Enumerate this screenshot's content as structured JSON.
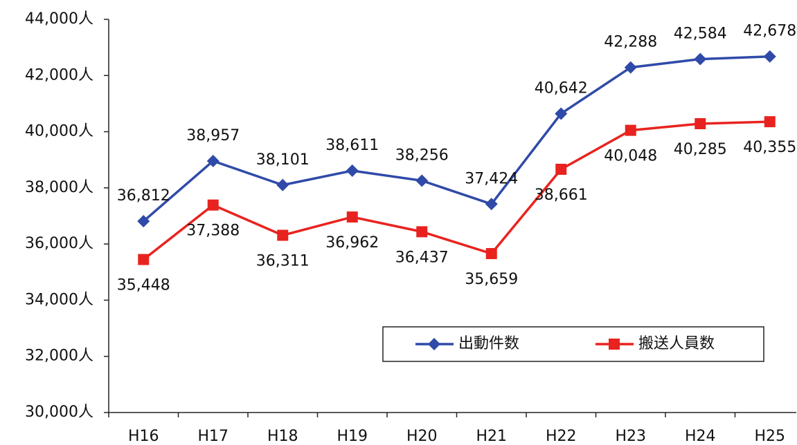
{
  "chart_data": {
    "type": "line",
    "categories": [
      "H16",
      "H17",
      "H18",
      "H19",
      "H20",
      "H21",
      "H22",
      "H23",
      "H24",
      "H25"
    ],
    "series": [
      {
        "name": "出動件数",
        "color": "#2f4aa8",
        "marker": "diamond",
        "values": [
          36812,
          38957,
          38101,
          38611,
          38256,
          37424,
          40642,
          42288,
          42584,
          42678
        ],
        "value_labels": [
          "36,812",
          "38,957",
          "38,101",
          "38,611",
          "38,256",
          "37,424",
          "40,642",
          "42,288",
          "42,584",
          "42,678"
        ]
      },
      {
        "name": "搬送人員数",
        "color": "#e8231f",
        "marker": "square",
        "values": [
          35448,
          37388,
          36311,
          36962,
          36437,
          35659,
          38661,
          40048,
          40285,
          40355
        ],
        "value_labels": [
          "35,448",
          "37,388",
          "36,311",
          "36,962",
          "36,437",
          "35,659",
          "38,661",
          "40,048",
          "40,285",
          "40,355"
        ]
      }
    ],
    "ylim": [
      30000,
      44000
    ],
    "yticks": [
      {
        "value": 30000,
        "label": "30,000人"
      },
      {
        "value": 32000,
        "label": "32,000人"
      },
      {
        "value": 34000,
        "label": "34,000人"
      },
      {
        "value": 36000,
        "label": "36,000人"
      },
      {
        "value": 38000,
        "label": "38,000人"
      },
      {
        "value": 40000,
        "label": "40,000人"
      },
      {
        "value": 42000,
        "label": "42,000人"
      },
      {
        "value": 44000,
        "label": "44,000人"
      }
    ],
    "grid": false
  }
}
